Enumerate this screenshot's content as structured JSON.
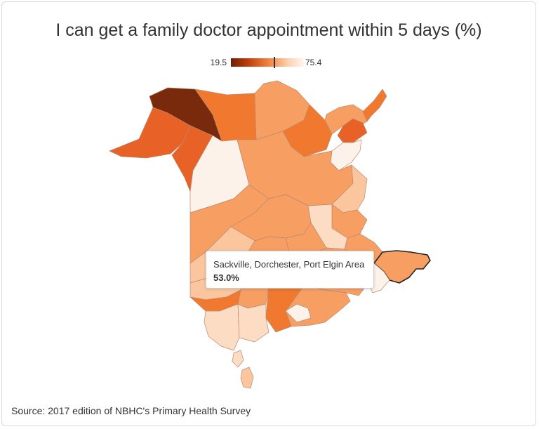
{
  "title": "I can get a family doctor appointment within 5 days (%)",
  "legend": {
    "min": "19.5",
    "max": "75.4",
    "marker_value": 53.0
  },
  "tooltip": {
    "area": "Sackville, Dorchester, Port Elgin Area",
    "value": "53.0%"
  },
  "source": "Source: 2017 edition of NBHC's Primary Health Survey",
  "colors": {
    "darkest": "#7a2a0c",
    "dark": "#e86227",
    "mid_dark": "#f0782f",
    "mid": "#f79e63",
    "light": "#fbc69e",
    "lighter": "#fcdcc3",
    "lightest": "#fdf2ea"
  }
}
